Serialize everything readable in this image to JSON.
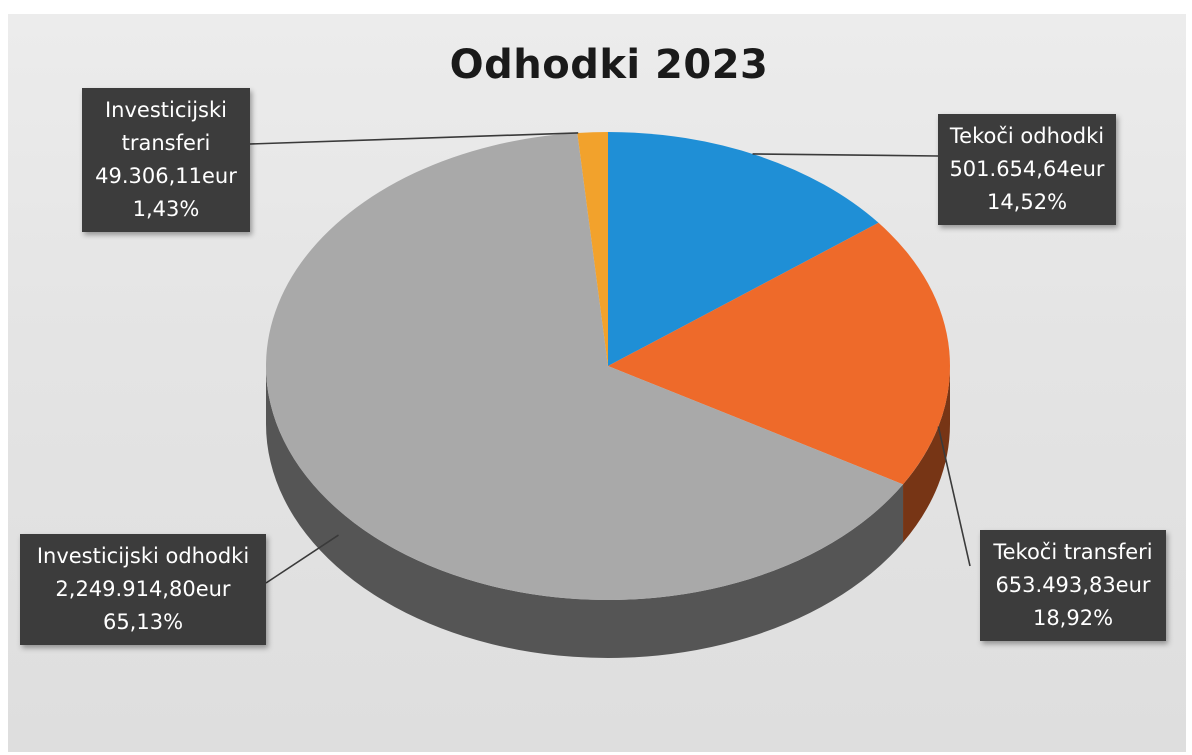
{
  "chart_data": {
    "type": "pie",
    "title": "Odhodki 2023",
    "slices": [
      {
        "label": "Tekoči odhodki",
        "amount": "501.654,64eur",
        "percent": "14,52%",
        "value": 14.52,
        "color": "#1f8fd6"
      },
      {
        "label": "Tekoči transferi",
        "amount": "653.493,83eur",
        "percent": "18,92%",
        "value": 18.92,
        "color": "#ee6a2a"
      },
      {
        "label": "Investicijski odhodki",
        "amount": "2,249.914,80eur",
        "percent": "65,13%",
        "value": 65.13,
        "color": "#a9a9a9"
      },
      {
        "label_line1": "Investicijski",
        "label_line2": "transferi",
        "amount": "49.306,11eur",
        "percent": "1,43%",
        "value": 1.43,
        "color": "#f2a22c"
      }
    ]
  }
}
